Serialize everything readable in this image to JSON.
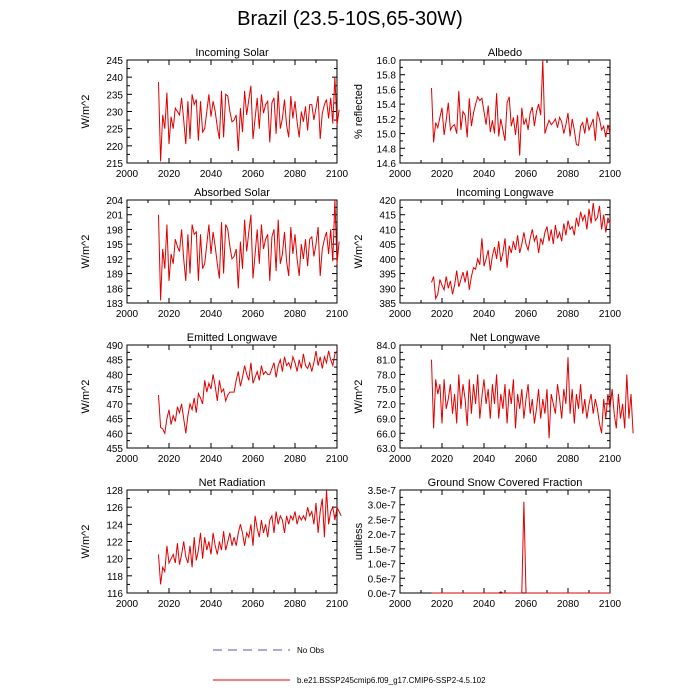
{
  "title": "Brazil (23.5-10S,65-30W)",
  "legend": {
    "obs_label": "No Obs",
    "obs_color": "#5555aa",
    "model_label": "b.e21.BSSP245cmip6.f09_g17.CMIP6-SSP2-4.5.102",
    "model_color": "#e00000"
  },
  "chart_data": [
    {
      "type": "line",
      "title": "Incoming Solar",
      "ylabel": "W/m^2",
      "xlim": [
        2000,
        2100
      ],
      "xticks": [
        2000,
        2020,
        2040,
        2060,
        2080,
        2100
      ],
      "ylim": [
        215,
        245
      ],
      "yticks": [
        "215",
        "220",
        "225",
        "230",
        "235",
        "240",
        "245"
      ],
      "series": [
        {
          "name": "b.e21.BSSP245cmip6.f09_g17.CMIP6-SSP2-4.5.102",
          "x_start": 2015,
          "values": [
            238.6,
            215.5,
            229,
            225,
            235.5,
            220.5,
            228.5,
            225,
            231,
            230,
            229,
            234,
            227.5,
            220.5,
            233,
            222,
            235,
            232,
            233.5,
            221.5,
            233,
            224,
            225,
            230,
            235,
            228.5,
            233,
            230,
            225.5,
            222,
            236,
            222.5,
            235,
            234.5,
            230,
            227,
            227.5,
            229,
            218.5,
            231,
            224,
            236,
            229,
            233.5,
            237.5,
            222,
            228,
            234,
            225,
            235,
            229.5,
            232,
            233,
            221,
            232.5,
            234,
            223.5,
            236,
            225,
            228,
            233.5,
            226,
            222.5,
            234.5,
            228,
            233,
            227,
            222.5,
            230,
            227,
            231.5,
            224.5,
            232,
            232,
            227.5,
            231,
            234.5,
            222,
            229.5,
            232,
            233.5,
            228,
            234,
            226.5,
            240,
            226,
            230.5
          ]
        }
      ]
    },
    {
      "type": "line",
      "title": "Albedo",
      "ylabel": "% reflected",
      "xlim": [
        2000,
        2100
      ],
      "xticks": [
        2000,
        2020,
        2040,
        2060,
        2080,
        2100
      ],
      "ylim": [
        14.6,
        16.0
      ],
      "yticks": [
        "14.6",
        "14.8",
        "15.0",
        "15.2",
        "15.4",
        "15.6",
        "15.8",
        "16.0"
      ],
      "series": [
        {
          "name": "b.e21.BSSP245cmip6.f09_g17.CMIP6-SSP2-4.5.102",
          "x_start": 2015,
          "values": [
            15.62,
            14.88,
            15.15,
            15.08,
            15.22,
            15.35,
            14.98,
            15.18,
            15.42,
            15.05,
            15.1,
            15.12,
            15.0,
            15.58,
            15.05,
            15.3,
            15.25,
            14.95,
            15.48,
            15.1,
            15.28,
            15.4,
            15.5,
            15.45,
            15.48,
            15.3,
            15.12,
            15.38,
            15.02,
            15.18,
            15.0,
            15.55,
            14.96,
            15.2,
            15.05,
            14.9,
            15.42,
            15.5,
            15.1,
            15.22,
            14.98,
            15.25,
            14.7,
            15.35,
            15.12,
            15.2,
            15.05,
            15.28,
            15.36,
            15.1,
            15.3,
            15.4,
            15.25,
            16.0,
            15.0,
            15.1,
            15.18,
            15.12,
            15.15,
            15.2,
            15.08,
            15.22,
            15.16,
            15.0,
            15.12,
            15.28,
            14.96,
            15.2,
            15.05,
            14.85,
            14.84,
            15.1,
            15.15,
            15.0,
            15.22,
            15.05,
            15.12,
            15.2,
            14.9,
            15.3,
            15.2,
            15.05,
            15.1,
            14.95,
            15.12,
            15.0
          ]
        }
      ]
    },
    {
      "type": "line",
      "title": "Absorbed Solar",
      "ylabel": "W/m^2",
      "xlim": [
        2000,
        2100
      ],
      "xticks": [
        2000,
        2020,
        2040,
        2060,
        2080,
        2100
      ],
      "ylim": [
        183,
        204
      ],
      "yticks": [
        "183",
        "186",
        "189",
        "192",
        "195",
        "198",
        "201",
        "204"
      ],
      "series": [
        {
          "name": "b.e21.BSSP245cmip6.f09_g17.CMIP6-SSP2-4.5.102",
          "x_start": 2015,
          "values": [
            201,
            183.5,
            194,
            190,
            199,
            187.5,
            193,
            191,
            196,
            194.5,
            193.5,
            198,
            192,
            187.5,
            197,
            189,
            199,
            197,
            197.5,
            187.5,
            197,
            190,
            191,
            195,
            199,
            193,
            197.5,
            194.5,
            191,
            188,
            199.5,
            189,
            199,
            198,
            194.5,
            192,
            192.5,
            194,
            186,
            195.5,
            190,
            200,
            193.5,
            197.5,
            201,
            188,
            193,
            198,
            191,
            199,
            194,
            196,
            197,
            187.5,
            196.5,
            198,
            189.5,
            200,
            191,
            193,
            197.5,
            191.5,
            188.5,
            198.5,
            193,
            197,
            192,
            188.5,
            195,
            192,
            196,
            190.5,
            196,
            196.5,
            192.5,
            195,
            198.5,
            188.5,
            194,
            196,
            197.5,
            193,
            198,
            191.5,
            204,
            191,
            195.5
          ]
        }
      ]
    },
    {
      "type": "line",
      "title": "Incoming Longwave",
      "ylabel": "W/m^2",
      "xlim": [
        2000,
        2100
      ],
      "xticks": [
        2000,
        2020,
        2040,
        2060,
        2080,
        2100
      ],
      "ylim": [
        385,
        420
      ],
      "yticks": [
        "385",
        "390",
        "395",
        "400",
        "405",
        "410",
        "415",
        "420"
      ],
      "series": [
        {
          "name": "b.e21.BSSP245cmip6.f09_g17.CMIP6-SSP2-4.5.102",
          "x_start": 2015,
          "values": [
            392,
            394,
            386.5,
            388,
            393,
            391,
            389.5,
            394,
            390,
            392.5,
            388,
            391,
            396,
            390.5,
            393,
            395.5,
            392,
            396,
            389.5,
            394,
            397,
            396.5,
            400,
            398,
            407,
            397.5,
            400,
            403,
            396,
            401,
            404,
            400,
            406,
            399,
            402,
            407,
            397,
            404.5,
            402,
            406,
            403,
            408,
            402,
            405,
            409,
            405,
            403,
            407,
            410,
            406,
            408,
            402,
            407,
            405,
            409,
            411,
            406,
            410,
            405,
            411.5,
            407,
            409,
            406,
            412,
            408,
            413,
            410,
            411,
            408,
            414,
            411,
            416,
            413,
            415,
            410,
            417,
            412,
            419,
            413,
            414,
            418,
            410,
            415,
            409,
            414,
            412
          ]
        }
      ]
    },
    {
      "type": "line",
      "title": "Emitted Longwave",
      "ylabel": "W/m^2",
      "xlim": [
        2000,
        2100
      ],
      "xticks": [
        2000,
        2020,
        2040,
        2060,
        2080,
        2100
      ],
      "ylim": [
        455,
        490
      ],
      "yticks": [
        "455",
        "460",
        "465",
        "470",
        "475",
        "480",
        "485",
        "490"
      ],
      "series": [
        {
          "name": "b.e21.BSSP245cmip6.f09_g17.CMIP6-SSP2-4.5.102",
          "x_start": 2015,
          "values": [
            473,
            462,
            461.5,
            460,
            465,
            468,
            463,
            466,
            464,
            469,
            467,
            470,
            465,
            460,
            466,
            470,
            468,
            472,
            467,
            473.5,
            472,
            470,
            478,
            474,
            477,
            475,
            480,
            476,
            471,
            478,
            474,
            475,
            471,
            473,
            474,
            474,
            474,
            478,
            481,
            476,
            479,
            483,
            480,
            478,
            484,
            477,
            479,
            481,
            478,
            483,
            480,
            481,
            480,
            480,
            482,
            484,
            479,
            483,
            485,
            481,
            486,
            483,
            484,
            482,
            486,
            484,
            481,
            485,
            482,
            487,
            483,
            482,
            484,
            481,
            484,
            488,
            483,
            486,
            482,
            486,
            484,
            488,
            485,
            483,
            487,
            488
          ]
        }
      ]
    },
    {
      "type": "line",
      "title": "Net Longwave",
      "ylabel": "W/m^2",
      "xlim": [
        2000,
        2100
      ],
      "xticks": [
        2000,
        2020,
        2040,
        2060,
        2080,
        2100
      ],
      "ylim": [
        63.0,
        84.0
      ],
      "yticks": [
        "63.0",
        "66.0",
        "69.0",
        "72.0",
        "75.0",
        "78.0",
        "81.0",
        "84.0"
      ],
      "series": [
        {
          "name": "b.e21.BSSP245cmip6.f09_g17.CMIP6-SSP2-4.5.102",
          "x_start": 2015,
          "values": [
            81,
            67,
            77,
            74,
            76,
            68,
            77,
            71,
            73,
            76,
            70,
            74,
            68,
            78,
            71,
            76,
            73,
            67.5,
            77,
            70,
            76,
            72,
            78,
            69,
            73.5,
            77,
            72,
            75,
            69,
            76,
            72,
            78,
            69,
            74,
            71,
            76,
            68,
            75,
            72,
            77,
            67,
            74,
            71,
            75,
            69,
            73,
            76,
            70,
            73,
            68,
            71,
            75,
            69,
            73,
            70,
            75,
            65,
            74,
            72,
            70,
            76,
            73,
            69,
            75,
            72,
            81.5,
            70,
            75,
            68,
            74,
            71,
            76,
            70,
            73,
            69,
            72,
            74,
            70,
            73,
            71,
            68,
            66,
            73,
            69,
            74,
            71,
            75,
            70,
            67,
            74,
            69,
            72,
            67,
            78,
            69,
            74,
            66
          ]
        }
      ]
    },
    {
      "type": "line",
      "title": "Net Radiation",
      "ylabel": "W/m^2",
      "xlim": [
        2000,
        2100
      ],
      "xticks": [
        2000,
        2020,
        2040,
        2060,
        2080,
        2100
      ],
      "ylim": [
        116,
        128
      ],
      "yticks": [
        "116",
        "118",
        "120",
        "122",
        "124",
        "126",
        "128"
      ],
      "series": [
        {
          "name": "b.e21.BSSP245cmip6.f09_g17.CMIP6-SSP2-4.5.102",
          "x_start": 2015,
          "values": [
            120.5,
            117,
            119,
            118.5,
            121.5,
            119.5,
            120,
            120.5,
            119.5,
            121.8,
            119.3,
            120.5,
            122,
            120.2,
            119.5,
            121.5,
            119,
            122.5,
            119.8,
            121,
            123,
            120,
            122.5,
            121,
            122,
            120.5,
            123,
            121.5,
            120.5,
            122,
            121,
            123.2,
            121,
            122,
            123,
            121.5,
            122.5,
            121.5,
            123,
            124,
            123,
            121.5,
            123,
            122.5,
            124,
            121.5,
            125,
            123.5,
            122.5,
            124.5,
            123,
            124,
            122.5,
            124.5,
            125,
            123,
            125.5,
            124,
            125,
            124.5,
            123,
            125,
            124,
            125,
            124.5,
            125.5,
            124,
            125,
            124.5,
            125,
            124.5,
            126,
            125,
            125.5,
            124,
            126.5,
            123,
            125.5,
            127,
            122.5,
            128,
            124,
            125.5,
            126,
            124.5,
            126,
            125.5,
            125
          ]
        }
      ]
    },
    {
      "type": "line",
      "title": "Ground Snow Covered Fraction",
      "ylabel": "unitless",
      "xlim": [
        2000,
        2100
      ],
      "xticks": [
        2000,
        2020,
        2040,
        2060,
        2080,
        2100
      ],
      "ylim": [
        0,
        3.5e-07
      ],
      "yticks": [
        "0.0e-7",
        "0.5e-7",
        "1.0e-7",
        "1.5e-7",
        "2.0e-7",
        "2.5e-7",
        "3.0e-7",
        "3.5e-7"
      ],
      "series": [
        {
          "name": "b.e21.BSSP245cmip6.f09_g17.CMIP6-SSP2-4.5.102",
          "x_start": 2015,
          "values": [
            0,
            0,
            0,
            0,
            0,
            0,
            0,
            0,
            0,
            0,
            0,
            0,
            0,
            0,
            0,
            0,
            0,
            0,
            0,
            0,
            0,
            0,
            0,
            0,
            0,
            0,
            0,
            0,
            0,
            0,
            0,
            0,
            0,
            4e-09,
            0,
            0,
            0,
            0,
            0,
            0,
            0,
            0,
            0,
            0,
            3.1e-07,
            0,
            0,
            0,
            0,
            0,
            0,
            0,
            0,
            0,
            0,
            0,
            0,
            0,
            0,
            0,
            0,
            0,
            0,
            0,
            0,
            0,
            0,
            0,
            0,
            0,
            0,
            0,
            0,
            0,
            0,
            0,
            0,
            0,
            0,
            0,
            0,
            0,
            0,
            0,
            0,
            0
          ]
        }
      ]
    }
  ]
}
